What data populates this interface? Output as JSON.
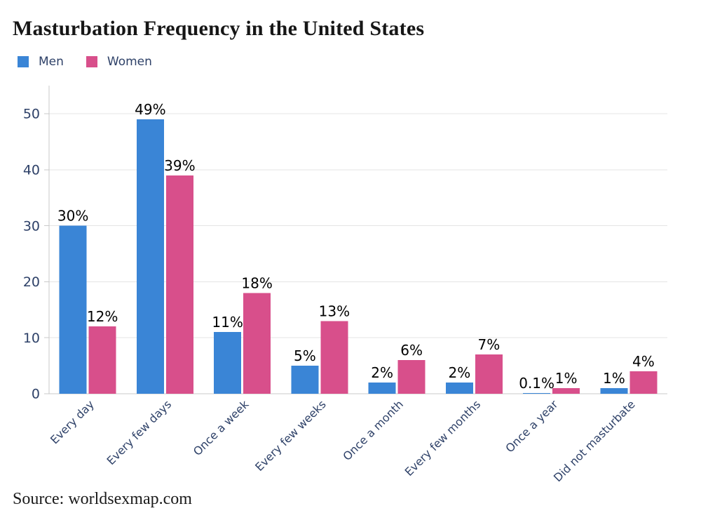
{
  "page": {
    "title": "Masturbation Frequency in the United States",
    "source": "Source: worldsexmap.com"
  },
  "legend": [
    {
      "label": "Men",
      "color": "#3a85d6"
    },
    {
      "label": "Women",
      "color": "#d84f8b"
    }
  ],
  "colors": {
    "men_bar": "#3a85d6",
    "women_bar": "#d84f8b",
    "axis_text": "#2e4168",
    "value_label": "#000000",
    "gridline": "#e4e4e4",
    "axis_line": "#c9c9c9",
    "title_text": "#161616",
    "background": "#ffffff"
  },
  "chart_data": {
    "type": "bar",
    "title": "Masturbation Frequency in the United States",
    "source": "Source: worldsexmap.com",
    "categories": [
      "Every day",
      "Every few days",
      "Once a week",
      "Every few weeks",
      "Once a month",
      "Every few months",
      "Once a year",
      "Did not masturbate"
    ],
    "series": [
      {
        "name": "Men",
        "color": "#3a85d6",
        "values": [
          30,
          49,
          11,
          5,
          2,
          2,
          0.1,
          1
        ],
        "labels": [
          "30%",
          "49%",
          "11%",
          "5%",
          "2%",
          "2%",
          "0.1%",
          "1%"
        ]
      },
      {
        "name": "Women",
        "color": "#d84f8b",
        "values": [
          12,
          39,
          18,
          13,
          6,
          7,
          1,
          4
        ],
        "labels": [
          "12%",
          "39%",
          "18%",
          "13%",
          "6%",
          "7%",
          "1%",
          "4%"
        ]
      }
    ],
    "xlabel": "",
    "ylabel": "",
    "ylim": [
      0,
      55
    ],
    "yticks": [
      0,
      10,
      20,
      30,
      40,
      50
    ],
    "grid": "horizontal",
    "legend_position": "top-left"
  }
}
